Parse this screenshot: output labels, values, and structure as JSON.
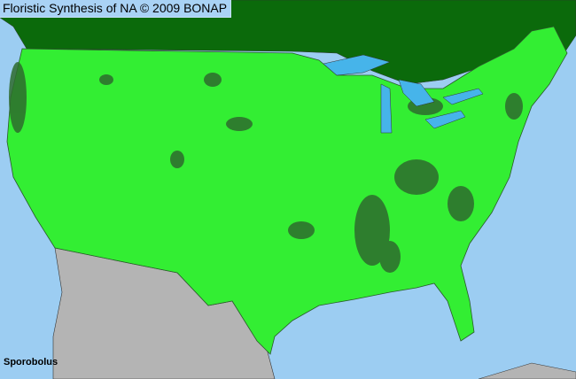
{
  "header": {
    "title": "Floristic Synthesis of NA © 2009 BONAP"
  },
  "map": {
    "taxon": "Sporobolus",
    "colors": {
      "ocean": "#9ccdf2",
      "canada": "#0b6a0b",
      "present": "#33ee33",
      "native_county_dark": "#2e6b2e",
      "mexico": "#b4b4b4",
      "lakes": "#46b4ea",
      "border": "#333333"
    }
  }
}
